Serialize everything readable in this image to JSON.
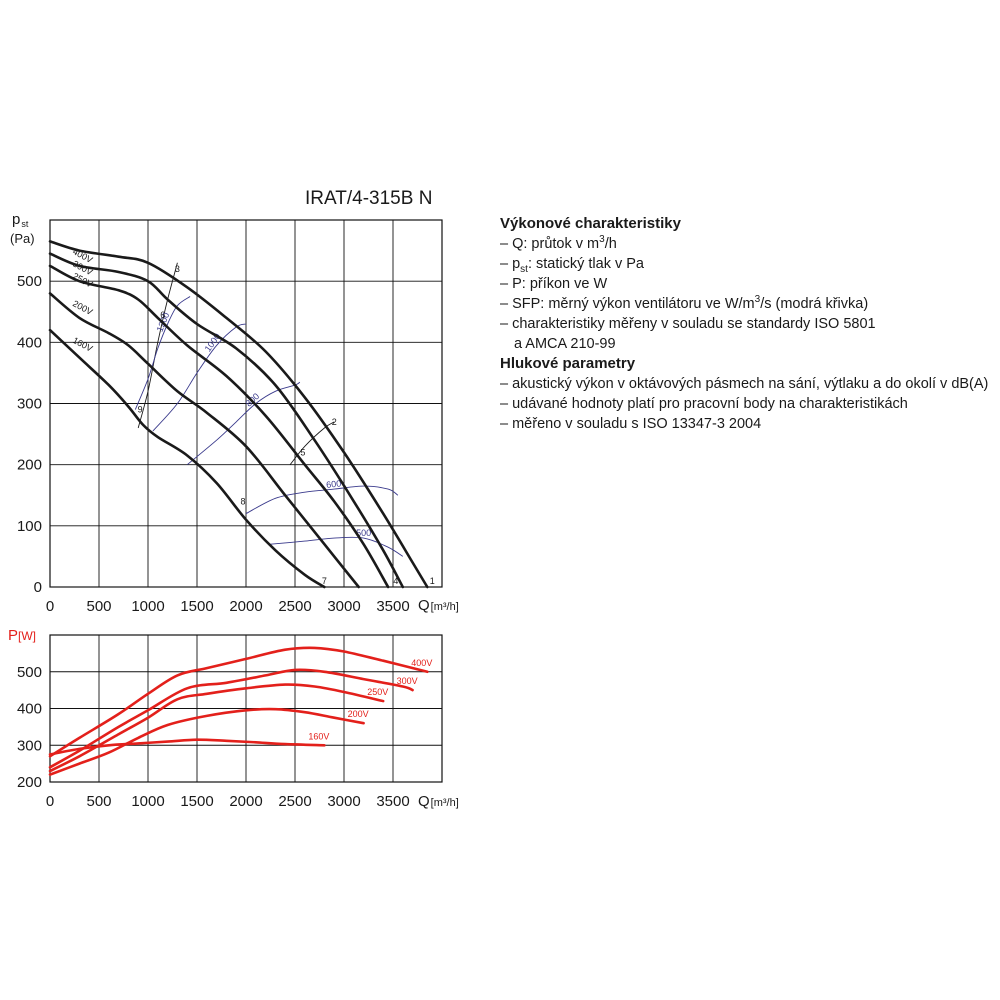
{
  "title": "IRAT/4-315B N",
  "legend": {
    "heading1": "Výkonové charakteristiky",
    "q_pre": "– Q: průtok v m",
    "q_sup": "3",
    "q_post": "/h",
    "p_pre": "– p",
    "p_sub": "st",
    "p_post": ": statický tlak v Pa",
    "power": "– P: příkon ve W",
    "sfp_pre": "– SFP: měrný výkon ventilátoru ve W/m",
    "sfp_sup": "3",
    "sfp_post": "/s (modrá křivka)",
    "iso1": "– charakteristiky měřeny v souladu se standardy ISO 5801",
    "iso1b": "a AMCA 210-99",
    "heading2": "Hlukové parametry",
    "noise1": "– akustický výkon v oktávových pásmech na sání, výtlaku a do okolí v dB(A)",
    "noise2": "– udávané hodnoty platí pro pracovní body na charakteristikách",
    "noise3": "– měřeno v souladu s ISO 13347-3 2004"
  },
  "colors": {
    "pressure": "#1a1a1a",
    "sfp": "#3a3a8c",
    "power": "#e3201b",
    "grid": "#111111"
  },
  "chart_data": [
    {
      "type": "line",
      "title": "IRAT/4-315B N",
      "ylabel_main": "p",
      "ylabel_sub": "st",
      "ylabel_unit": "(Pa)",
      "xlabel_main": "Q",
      "xlabel_unit": "[m³/h]",
      "xlim": [
        0,
        4000
      ],
      "ylim": [
        0,
        600
      ],
      "x_ticks": [
        0,
        500,
        1000,
        1500,
        2000,
        2500,
        3000,
        3500
      ],
      "y_ticks": [
        0,
        100,
        200,
        300,
        400,
        500
      ],
      "series": [
        {
          "name": "400V",
          "x": [
            0,
            300,
            700,
            1000,
            1400,
            1800,
            2200,
            2600,
            3000,
            3400,
            3700,
            3850
          ],
          "y": [
            565,
            550,
            540,
            530,
            490,
            440,
            385,
            310,
            220,
            120,
            40,
            0
          ]
        },
        {
          "name": "300V",
          "x": [
            0,
            300,
            700,
            1000,
            1200,
            1500,
            1900,
            2300,
            2700,
            3100,
            3400,
            3600
          ],
          "y": [
            545,
            525,
            515,
            500,
            470,
            430,
            390,
            330,
            240,
            140,
            60,
            0
          ]
        },
        {
          "name": "250V",
          "x": [
            0,
            300,
            700,
            900,
            1100,
            1400,
            1800,
            2200,
            2600,
            2900,
            3200,
            3450
          ],
          "y": [
            525,
            500,
            485,
            470,
            440,
            395,
            345,
            280,
            200,
            140,
            70,
            0
          ]
        },
        {
          "name": "200V",
          "x": [
            0,
            300,
            600,
            800,
            1000,
            1300,
            1600,
            2000,
            2400,
            2800,
            3150
          ],
          "y": [
            480,
            440,
            415,
            395,
            365,
            320,
            285,
            230,
            150,
            70,
            0
          ]
        },
        {
          "name": "160V",
          "x": [
            0,
            300,
            600,
            800,
            950,
            1100,
            1400,
            1700,
            2000,
            2300,
            2600,
            2800
          ],
          "y": [
            420,
            375,
            330,
            295,
            265,
            245,
            215,
            170,
            110,
            60,
            20,
            0
          ]
        }
      ],
      "system_curves": [
        {
          "label": "1",
          "x": [
            0,
            3850
          ],
          "y": [
            0,
            0
          ]
        },
        {
          "label": "2",
          "x": [
            2450,
            2600,
            2800,
            2900
          ],
          "y": [
            200,
            230,
            260,
            270
          ]
        },
        {
          "label": "3",
          "x": [
            900,
            1000,
            1100,
            1200,
            1300
          ],
          "y": [
            260,
            320,
            400,
            470,
            530
          ]
        }
      ],
      "point_labels": [
        {
          "label": "1",
          "x": 3900,
          "y": 5
        },
        {
          "label": "2",
          "x": 2900,
          "y": 265
        },
        {
          "label": "3",
          "x": 1300,
          "y": 515
        },
        {
          "label": "4",
          "x": 3530,
          "y": 5
        },
        {
          "label": "5",
          "x": 2580,
          "y": 215
        },
        {
          "label": "6",
          "x": 1150,
          "y": 440
        },
        {
          "label": "7",
          "x": 2800,
          "y": 5
        },
        {
          "label": "8",
          "x": 1970,
          "y": 135
        },
        {
          "label": "9",
          "x": 920,
          "y": 285
        }
      ],
      "sfp_curves": [
        {
          "name": "1200",
          "x": [
            870,
            1000,
            1100,
            1200,
            1300,
            1430
          ],
          "y": [
            290,
            340,
            390,
            430,
            460,
            475
          ]
        },
        {
          "name": "1000",
          "x": [
            1050,
            1300,
            1500,
            1700,
            1900,
            2000
          ],
          "y": [
            255,
            300,
            350,
            395,
            425,
            430
          ]
        },
        {
          "name": "800",
          "x": [
            1400,
            1700,
            1900,
            2100,
            2300,
            2500,
            2550
          ],
          "y": [
            200,
            240,
            270,
            300,
            320,
            330,
            335
          ]
        },
        {
          "name": "600",
          "x": [
            2000,
            2300,
            2600,
            2900,
            3200,
            3450,
            3550
          ],
          "y": [
            120,
            145,
            155,
            160,
            165,
            160,
            150
          ]
        },
        {
          "name": "500",
          "x": [
            2250,
            2600,
            2900,
            3200,
            3450,
            3600
          ],
          "y": [
            70,
            75,
            80,
            80,
            65,
            50
          ]
        }
      ]
    },
    {
      "type": "line",
      "ylabel_main": "P",
      "ylabel_unit": "[W]",
      "xlabel_main": "Q",
      "xlabel_unit": "[m³/h]",
      "xlim": [
        0,
        4000
      ],
      "ylim": [
        200,
        600
      ],
      "x_ticks": [
        0,
        500,
        1000,
        1500,
        2000,
        2500,
        3000,
        3500
      ],
      "y_ticks": [
        200,
        300,
        400,
        500
      ],
      "series": [
        {
          "name": "400V",
          "x": [
            0,
            300,
            700,
            1000,
            1300,
            1600,
            2000,
            2400,
            2700,
            3000,
            3400,
            3850
          ],
          "y": [
            270,
            320,
            385,
            440,
            490,
            510,
            535,
            560,
            565,
            555,
            530,
            500
          ]
        },
        {
          "name": "300V",
          "x": [
            0,
            300,
            700,
            1000,
            1400,
            1800,
            2200,
            2500,
            2800,
            3200,
            3600,
            3700
          ],
          "y": [
            240,
            285,
            350,
            395,
            455,
            470,
            490,
            505,
            500,
            480,
            460,
            450
          ]
        },
        {
          "name": "250V",
          "x": [
            0,
            300,
            700,
            1000,
            1300,
            1600,
            2000,
            2400,
            2700,
            3000,
            3400
          ],
          "y": [
            230,
            270,
            330,
            375,
            425,
            440,
            455,
            465,
            460,
            445,
            420
          ]
        },
        {
          "name": "200V",
          "x": [
            0,
            300,
            600,
            900,
            1200,
            1600,
            2000,
            2300,
            2600,
            2900,
            3200
          ],
          "y": [
            220,
            250,
            280,
            320,
            355,
            380,
            395,
            398,
            390,
            375,
            360
          ]
        },
        {
          "name": "160V",
          "x": [
            0,
            300,
            600,
            900,
            1200,
            1500,
            1800,
            2100,
            2400,
            2800
          ],
          "y": [
            275,
            290,
            300,
            305,
            310,
            315,
            312,
            308,
            303,
            300
          ]
        }
      ]
    }
  ]
}
